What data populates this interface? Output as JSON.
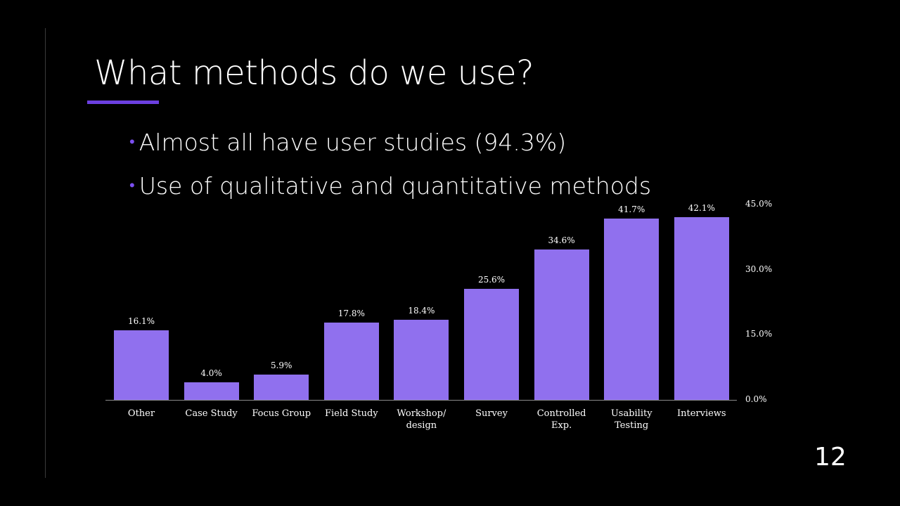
{
  "slide": {
    "title": "What methods do we use?",
    "accent_color": "#6b3fe0",
    "bullets": [
      "Almost all have user studies (94.3%)",
      "Use of qualitative and quantitative methods"
    ],
    "page_number": "12"
  },
  "chart_data": {
    "type": "bar",
    "title": "",
    "xlabel": "",
    "ylabel": "",
    "categories": [
      "Other",
      "Case Study",
      "Focus Group",
      "Field Study",
      "Workshop/\ndesign",
      "Survey",
      "Controlled\nExp.",
      "Usability\nTesting",
      "Interviews"
    ],
    "values": [
      16.1,
      4.0,
      5.9,
      17.8,
      18.4,
      25.6,
      34.6,
      41.7,
      42.1
    ],
    "value_labels": [
      "16.1%",
      "4.0%",
      "5.9%",
      "17.8%",
      "18.4%",
      "25.6%",
      "34.6%",
      "41.7%",
      "42.1%"
    ],
    "ylim": [
      0,
      45
    ],
    "yticks": [
      "0.0%",
      "15.0%",
      "30.0%",
      "45.0%"
    ],
    "ytick_values": [
      0,
      15,
      30,
      45
    ],
    "y_axis_position": "right",
    "grid": false,
    "legend": false,
    "bar_color": "#9070ee"
  }
}
